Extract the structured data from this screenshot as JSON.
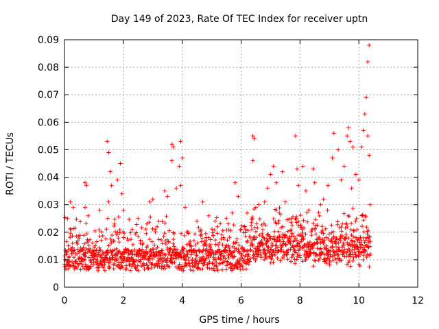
{
  "chart_data": {
    "type": "scatter",
    "title": "Day 149 of 2023, Rate Of TEC Index for receiver uptn",
    "xlabel": "GPS time / hours",
    "ylabel": "ROTI / TECUs",
    "xlim": [
      0,
      12
    ],
    "ylim": [
      0,
      0.09
    ],
    "x_ticks": [
      "0",
      "2",
      "4",
      "6",
      "8",
      "10",
      "12"
    ],
    "y_ticks": [
      "0",
      "0.01",
      "0.02",
      "0.03",
      "0.04",
      "0.05",
      "0.06",
      "0.07",
      "0.08",
      "0.09"
    ],
    "grid": true,
    "marker": "+",
    "color": "#ff0000",
    "x_data_extent": [
      0,
      10.4
    ],
    "series": [
      {
        "points": [
          [
            0.05,
            0.012
          ],
          [
            0.1,
            0.025
          ],
          [
            0.2,
            0.031
          ],
          [
            0.3,
            0.029
          ],
          [
            0.7,
            0.038
          ],
          [
            0.75,
            0.037
          ],
          [
            0.7,
            0.029
          ],
          [
            0.8,
            0.026
          ],
          [
            1.2,
            0.028
          ],
          [
            1.45,
            0.053
          ],
          [
            1.5,
            0.049
          ],
          [
            1.55,
            0.042
          ],
          [
            1.5,
            0.031
          ],
          [
            1.6,
            0.037
          ],
          [
            1.7,
            0.023
          ],
          [
            1.8,
            0.039
          ],
          [
            1.9,
            0.045
          ],
          [
            1.95,
            0.034
          ],
          [
            2.0,
            0.028
          ],
          [
            2.3,
            0.021
          ],
          [
            2.5,
            0.025
          ],
          [
            2.8,
            0.023
          ],
          [
            2.9,
            0.031
          ],
          [
            3.0,
            0.032
          ],
          [
            3.2,
            0.024
          ],
          [
            3.4,
            0.035
          ],
          [
            3.5,
            0.033
          ],
          [
            3.65,
            0.052
          ],
          [
            3.7,
            0.051
          ],
          [
            3.65,
            0.046
          ],
          [
            3.8,
            0.036
          ],
          [
            3.9,
            0.044
          ],
          [
            3.95,
            0.053
          ],
          [
            4.0,
            0.047
          ],
          [
            3.95,
            0.037
          ],
          [
            4.1,
            0.029
          ],
          [
            4.5,
            0.024
          ],
          [
            4.7,
            0.031
          ],
          [
            4.9,
            0.026
          ],
          [
            5.2,
            0.022
          ],
          [
            5.5,
            0.025
          ],
          [
            5.7,
            0.027
          ],
          [
            5.8,
            0.038
          ],
          [
            5.9,
            0.033
          ],
          [
            6.1,
            0.022
          ],
          [
            6.2,
            0.027
          ],
          [
            6.4,
            0.055
          ],
          [
            6.45,
            0.054
          ],
          [
            6.4,
            0.046
          ],
          [
            6.5,
            0.029
          ],
          [
            6.6,
            0.03
          ],
          [
            6.8,
            0.031
          ],
          [
            6.9,
            0.036
          ],
          [
            7.0,
            0.041
          ],
          [
            7.1,
            0.044
          ],
          [
            7.2,
            0.038
          ],
          [
            7.3,
            0.027
          ],
          [
            7.4,
            0.042
          ],
          [
            7.5,
            0.031
          ],
          [
            7.7,
            0.025
          ],
          [
            7.85,
            0.055
          ],
          [
            7.9,
            0.043
          ],
          [
            7.95,
            0.037
          ],
          [
            8.1,
            0.044
          ],
          [
            8.2,
            0.035
          ],
          [
            8.3,
            0.028
          ],
          [
            8.45,
            0.043
          ],
          [
            8.5,
            0.038
          ],
          [
            8.7,
            0.03
          ],
          [
            8.8,
            0.032
          ],
          [
            8.95,
            0.037
          ],
          [
            9.1,
            0.047
          ],
          [
            9.15,
            0.056
          ],
          [
            9.3,
            0.05
          ],
          [
            9.4,
            0.039
          ],
          [
            9.5,
            0.044
          ],
          [
            9.6,
            0.055
          ],
          [
            9.65,
            0.058
          ],
          [
            9.7,
            0.053
          ],
          [
            9.75,
            0.036
          ],
          [
            9.8,
            0.051
          ],
          [
            9.9,
            0.041
          ],
          [
            10.0,
            0.039
          ],
          [
            10.1,
            0.051
          ],
          [
            10.15,
            0.057
          ],
          [
            10.2,
            0.063
          ],
          [
            10.25,
            0.069
          ],
          [
            10.3,
            0.082
          ],
          [
            10.35,
            0.088
          ],
          [
            10.3,
            0.055
          ],
          [
            10.35,
            0.048
          ],
          [
            10.38,
            0.03
          ]
        ]
      }
    ]
  }
}
